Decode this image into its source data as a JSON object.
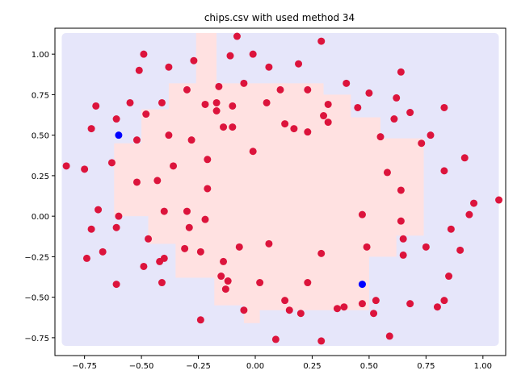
{
  "chart_data": {
    "type": "scatter",
    "title": "chips.csv with used method 34",
    "xlabel": "",
    "ylabel": "",
    "xlim": [
      -0.88,
      1.1
    ],
    "ylim": [
      -0.86,
      1.16
    ],
    "xticks": [
      -0.75,
      -0.5,
      -0.25,
      0.0,
      0.25,
      0.5,
      0.75,
      1.0
    ],
    "xtick_labels": [
      "−0.75",
      "−0.50",
      "−0.25",
      "0.00",
      "0.25",
      "0.50",
      "0.75",
      "1.00"
    ],
    "yticks": [
      -0.75,
      -0.5,
      -0.25,
      0.0,
      0.25,
      0.5,
      0.75,
      1.0
    ],
    "ytick_labels": [
      "−0.75",
      "−0.50",
      "−0.25",
      "0.00",
      "0.25",
      "0.50",
      "0.75",
      "1.00"
    ],
    "grid": false,
    "legend": "none",
    "background_region": {
      "description": "decision regions",
      "outer_color": "#e6e6fa",
      "inner_color": "#ffe1e1",
      "outer_extent": {
        "x": [
          -0.85,
          1.07
        ],
        "y": [
          -0.8,
          1.13
        ]
      }
    },
    "inner_region_polygon": [
      [
        -0.26,
        1.13
      ],
      [
        -0.17,
        1.13
      ],
      [
        -0.17,
        0.82
      ],
      [
        0.3,
        0.82
      ],
      [
        0.3,
        0.75
      ],
      [
        0.42,
        0.75
      ],
      [
        0.42,
        0.61
      ],
      [
        0.55,
        0.61
      ],
      [
        0.55,
        0.48
      ],
      [
        0.74,
        0.48
      ],
      [
        0.74,
        -0.12
      ],
      [
        0.62,
        -0.12
      ],
      [
        0.62,
        -0.25
      ],
      [
        0.5,
        -0.25
      ],
      [
        0.5,
        -0.58
      ],
      [
        0.02,
        -0.58
      ],
      [
        0.02,
        -0.66
      ],
      [
        -0.05,
        -0.66
      ],
      [
        -0.05,
        -0.55
      ],
      [
        -0.18,
        -0.55
      ],
      [
        -0.18,
        -0.38
      ],
      [
        -0.35,
        -0.38
      ],
      [
        -0.35,
        -0.17
      ],
      [
        -0.47,
        -0.17
      ],
      [
        -0.47,
        0.0
      ],
      [
        -0.62,
        0.0
      ],
      [
        -0.62,
        0.45
      ],
      [
        -0.5,
        0.45
      ],
      [
        -0.5,
        0.66
      ],
      [
        -0.38,
        0.66
      ],
      [
        -0.38,
        0.82
      ],
      [
        -0.26,
        0.82
      ]
    ],
    "series": [
      {
        "color": "#dc143c",
        "points": [
          [
            -0.83,
            0.31
          ],
          [
            -0.75,
            0.29
          ],
          [
            -0.72,
            0.54
          ],
          [
            -0.7,
            0.68
          ],
          [
            -0.69,
            0.04
          ],
          [
            -0.72,
            -0.08
          ],
          [
            -0.74,
            -0.26
          ],
          [
            -0.67,
            -0.22
          ],
          [
            -0.63,
            0.33
          ],
          [
            -0.61,
            0.6
          ],
          [
            -0.6,
            0.0
          ],
          [
            -0.61,
            -0.07
          ],
          [
            -0.61,
            -0.42
          ],
          [
            -0.55,
            0.7
          ],
          [
            -0.52,
            0.21
          ],
          [
            -0.52,
            0.47
          ],
          [
            -0.51,
            0.9
          ],
          [
            -0.49,
            1.0
          ],
          [
            -0.48,
            0.63
          ],
          [
            -0.47,
            -0.14
          ],
          [
            -0.49,
            -0.31
          ],
          [
            -0.43,
            0.22
          ],
          [
            -0.41,
            0.7
          ],
          [
            -0.38,
            0.92
          ],
          [
            -0.38,
            0.5
          ],
          [
            -0.36,
            0.31
          ],
          [
            -0.4,
            0.03
          ],
          [
            -0.42,
            -0.28
          ],
          [
            -0.4,
            -0.26
          ],
          [
            -0.41,
            -0.41
          ],
          [
            -0.3,
            0.78
          ],
          [
            -0.28,
            0.47
          ],
          [
            -0.3,
            0.03
          ],
          [
            -0.29,
            -0.07
          ],
          [
            -0.31,
            -0.2
          ],
          [
            -0.27,
            0.96
          ],
          [
            -0.22,
            0.69
          ],
          [
            -0.21,
            0.35
          ],
          [
            -0.21,
            0.17
          ],
          [
            -0.22,
            -0.02
          ],
          [
            -0.24,
            -0.22
          ],
          [
            -0.24,
            -0.64
          ],
          [
            -0.17,
            0.7
          ],
          [
            -0.17,
            0.65
          ],
          [
            -0.16,
            0.8
          ],
          [
            -0.14,
            0.55
          ],
          [
            -0.14,
            -0.28
          ],
          [
            -0.15,
            -0.37
          ],
          [
            -0.13,
            -0.45
          ],
          [
            -0.12,
            -0.4
          ],
          [
            -0.11,
            0.99
          ],
          [
            -0.1,
            0.68
          ],
          [
            -0.1,
            0.55
          ],
          [
            -0.08,
            1.11
          ],
          [
            -0.07,
            -0.19
          ],
          [
            -0.05,
            0.82
          ],
          [
            -0.05,
            -0.58
          ],
          [
            -0.01,
            1.0
          ],
          [
            -0.01,
            0.4
          ],
          [
            0.02,
            -0.41
          ],
          [
            0.05,
            0.7
          ],
          [
            0.06,
            0.92
          ],
          [
            0.06,
            -0.17
          ],
          [
            0.09,
            -0.76
          ],
          [
            0.11,
            0.78
          ],
          [
            0.13,
            0.57
          ],
          [
            0.13,
            -0.52
          ],
          [
            0.15,
            -0.58
          ],
          [
            0.17,
            0.54
          ],
          [
            0.19,
            0.94
          ],
          [
            0.2,
            -0.6
          ],
          [
            0.23,
            0.78
          ],
          [
            0.23,
            0.52
          ],
          [
            0.23,
            -0.41
          ],
          [
            0.29,
            1.08
          ],
          [
            0.3,
            0.62
          ],
          [
            0.29,
            -0.23
          ],
          [
            0.29,
            -0.77
          ],
          [
            0.32,
            0.69
          ],
          [
            0.32,
            0.58
          ],
          [
            0.36,
            -0.57
          ],
          [
            0.4,
            0.82
          ],
          [
            0.39,
            -0.56
          ],
          [
            0.45,
            0.67
          ],
          [
            0.47,
            0.01
          ],
          [
            0.47,
            -0.54
          ],
          [
            0.49,
            -0.19
          ],
          [
            0.5,
            0.76
          ],
          [
            0.52,
            -0.6
          ],
          [
            0.53,
            -0.52
          ],
          [
            0.55,
            0.49
          ],
          [
            0.58,
            0.27
          ],
          [
            0.59,
            -0.74
          ],
          [
            0.61,
            0.6
          ],
          [
            0.62,
            0.73
          ],
          [
            0.64,
            0.89
          ],
          [
            0.64,
            0.16
          ],
          [
            0.64,
            -0.03
          ],
          [
            0.65,
            -0.14
          ],
          [
            0.65,
            -0.24
          ],
          [
            0.68,
            0.64
          ],
          [
            0.68,
            -0.54
          ],
          [
            0.73,
            0.45
          ],
          [
            0.75,
            -0.19
          ],
          [
            0.77,
            0.5
          ],
          [
            0.8,
            -0.56
          ],
          [
            0.83,
            0.67
          ],
          [
            0.83,
            0.28
          ],
          [
            0.83,
            -0.52
          ],
          [
            0.85,
            -0.37
          ],
          [
            0.86,
            -0.08
          ],
          [
            0.9,
            -0.21
          ],
          [
            0.92,
            0.36
          ],
          [
            0.94,
            0.01
          ],
          [
            0.96,
            0.08
          ],
          [
            1.07,
            0.1
          ]
        ]
      },
      {
        "color": "#0000ff",
        "points": [
          [
            -0.6,
            0.5
          ],
          [
            0.47,
            -0.42
          ]
        ]
      }
    ]
  }
}
